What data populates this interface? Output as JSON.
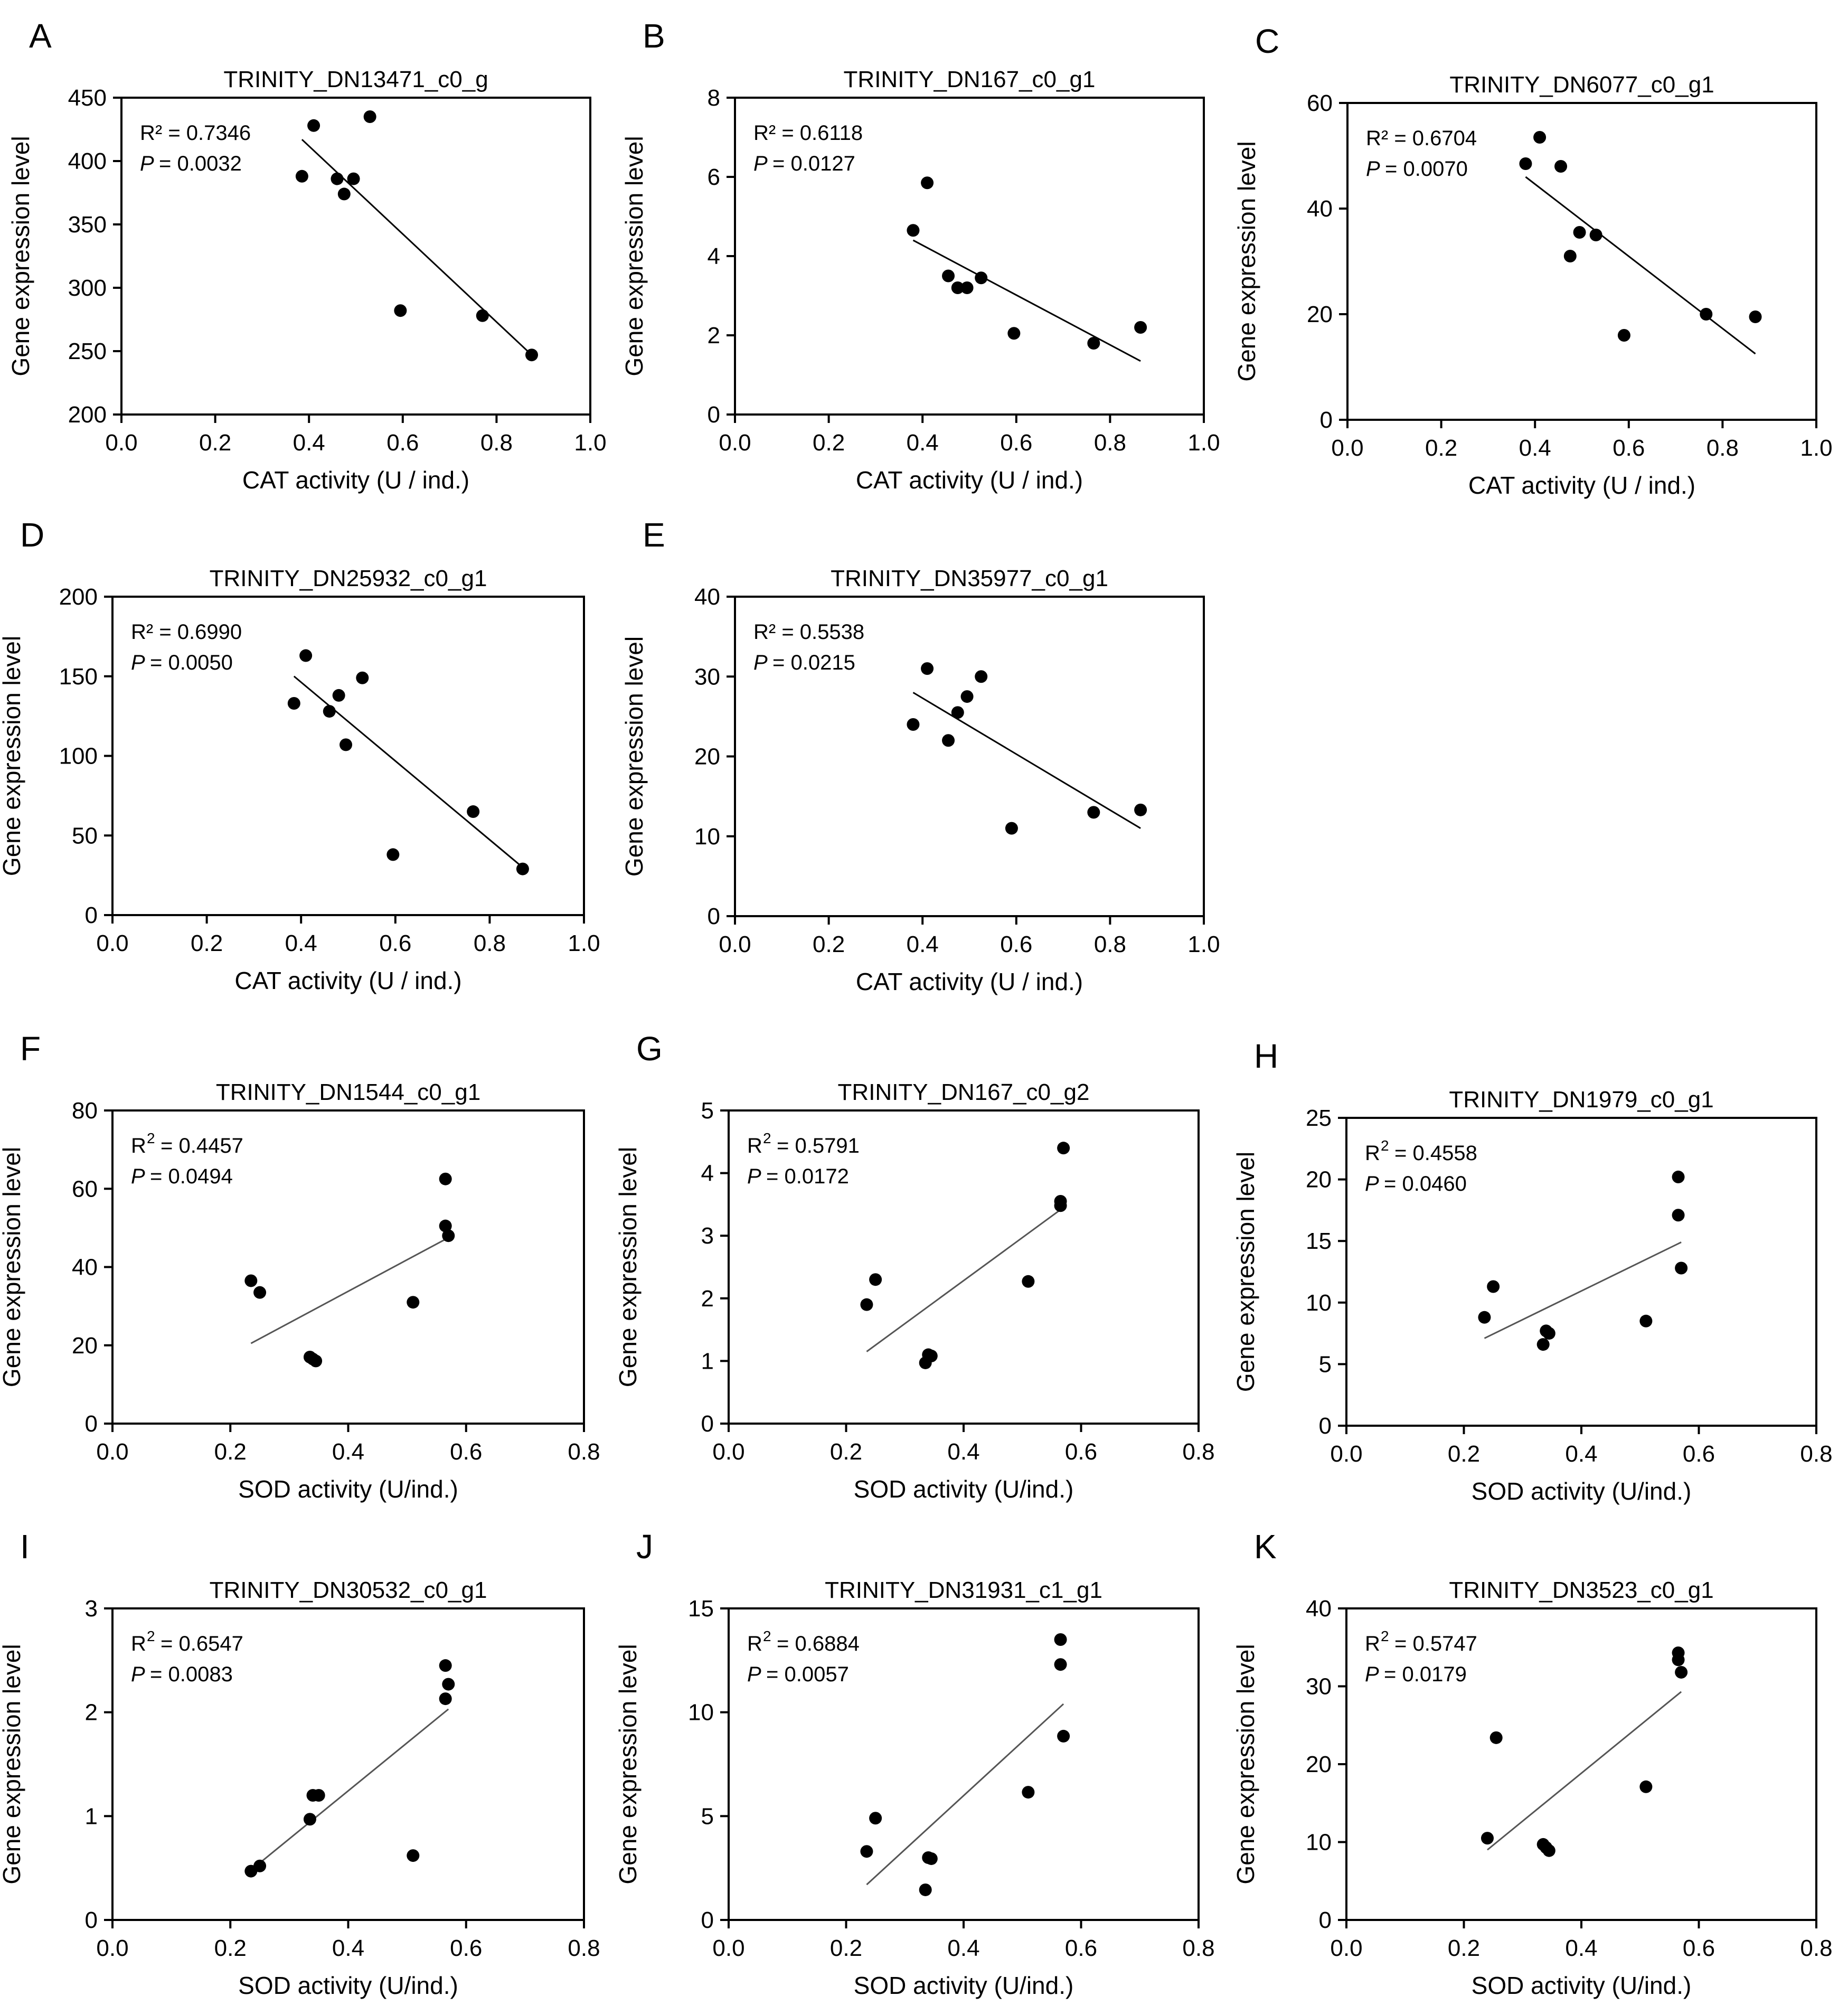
{
  "chart_data": [
    {
      "id": "A",
      "type": "scatter",
      "panel_label": "A",
      "title": "TRINITY_DN13471_c0_g",
      "xlabel": "CAT activity (U / ind.)",
      "ylabel": "Gene expression level",
      "xlim": [
        0,
        1.0
      ],
      "ylim": [
        200,
        450
      ],
      "xticks": [
        "0.0",
        "0.2",
        "0.4",
        "0.6",
        "0.8",
        "1.0"
      ],
      "yticks": [
        "200",
        "250",
        "300",
        "350",
        "400",
        "450"
      ],
      "r2_label": "R² = 0.7346",
      "p_label": "= 0.0032",
      "x": [
        0.385,
        0.41,
        0.46,
        0.475,
        0.495,
        0.53,
        0.595,
        0.77,
        0.875
      ],
      "y": [
        388,
        428,
        386,
        374,
        386,
        435,
        282,
        278,
        247
      ],
      "fit": [
        [
          0.385,
          417
        ],
        [
          0.875,
          247
        ]
      ]
    },
    {
      "id": "B",
      "type": "scatter",
      "panel_label": "B",
      "title": "TRINITY_DN167_c0_g1",
      "xlabel": "CAT activity (U / ind.)",
      "ylabel": "Gene expression level",
      "xlim": [
        0,
        1.0
      ],
      "ylim": [
        0,
        8
      ],
      "xticks": [
        "0.0",
        "0.2",
        "0.4",
        "0.6",
        "0.8",
        "1.0"
      ],
      "yticks": [
        "0",
        "2",
        "4",
        "6",
        "8"
      ],
      "r2_label": "R² = 0.6118",
      "p_label": "= 0.0127",
      "x": [
        0.38,
        0.41,
        0.455,
        0.475,
        0.495,
        0.525,
        0.595,
        0.765,
        0.865
      ],
      "y": [
        4.65,
        5.85,
        3.5,
        3.2,
        3.2,
        3.45,
        2.05,
        1.8,
        2.2
      ],
      "fit": [
        [
          0.38,
          4.4
        ],
        [
          0.865,
          1.35
        ]
      ]
    },
    {
      "id": "C",
      "type": "scatter",
      "panel_label": "C",
      "title": "TRINITY_DN6077_c0_g1",
      "xlabel": "CAT activity (U / ind.)",
      "ylabel": "Gene expression level",
      "xlim": [
        0,
        1.0
      ],
      "ylim": [
        0,
        60
      ],
      "xticks": [
        "0.0",
        "0.2",
        "0.4",
        "0.6",
        "0.8",
        "1.0"
      ],
      "yticks": [
        "0",
        "20",
        "40",
        "60"
      ],
      "r2_label": "R² = 0.6704",
      "p_label": "= 0.0070",
      "x": [
        0.38,
        0.41,
        0.455,
        0.475,
        0.495,
        0.53,
        0.59,
        0.765,
        0.87
      ],
      "y": [
        48.5,
        53.5,
        48,
        31,
        35.5,
        35,
        16,
        20,
        19.5
      ],
      "fit": [
        [
          0.38,
          46
        ],
        [
          0.87,
          12.5
        ]
      ]
    },
    {
      "id": "D",
      "type": "scatter",
      "panel_label": "D",
      "title": "TRINITY_DN25932_c0_g1",
      "xlabel": "CAT activity (U / ind.)",
      "ylabel": "Gene expression level",
      "xlim": [
        0,
        1.0
      ],
      "ylim": [
        0,
        200
      ],
      "xticks": [
        "0.0",
        "0.2",
        "0.4",
        "0.6",
        "0.8",
        "1.0"
      ],
      "yticks": [
        "0",
        "50",
        "100",
        "150",
        "200"
      ],
      "r2_label": "R² = 0.6990",
      "p_label": "= 0.0050",
      "x": [
        0.385,
        0.41,
        0.46,
        0.48,
        0.495,
        0.53,
        0.595,
        0.765,
        0.87
      ],
      "y": [
        133,
        163,
        128,
        138,
        107,
        149,
        38,
        65,
        29
      ],
      "fit": [
        [
          0.385,
          150
        ],
        [
          0.87,
          30
        ]
      ]
    },
    {
      "id": "E",
      "type": "scatter",
      "panel_label": "E",
      "title": "TRINITY_DN35977_c0_g1",
      "xlabel": "CAT activity (U / ind.)",
      "ylabel": "Gene expression level",
      "xlim": [
        0,
        1.0
      ],
      "ylim": [
        0,
        40
      ],
      "xticks": [
        "0.0",
        "0.2",
        "0.4",
        "0.6",
        "0.8",
        "1.0"
      ],
      "yticks": [
        "0",
        "10",
        "20",
        "30",
        "40"
      ],
      "r2_label": "R² = 0.5538",
      "p_label": "= 0.0215",
      "x": [
        0.38,
        0.41,
        0.455,
        0.475,
        0.495,
        0.525,
        0.59,
        0.765,
        0.865
      ],
      "y": [
        24,
        31,
        22,
        25.5,
        27.5,
        30,
        11,
        13,
        13.3
      ],
      "fit": [
        [
          0.38,
          28
        ],
        [
          0.865,
          11
        ]
      ]
    },
    {
      "id": "F",
      "type": "scatter",
      "panel_label": "F",
      "title": "TRINITY_DN1544_c0_g1",
      "xlabel": "SOD activity (U/ind.)",
      "ylabel": "Gene expression level",
      "xlim": [
        0,
        0.8
      ],
      "ylim": [
        0,
        80
      ],
      "xticks": [
        "0.0",
        "0.2",
        "0.4",
        "0.6",
        "0.8"
      ],
      "yticks": [
        "0",
        "20",
        "40",
        "60",
        "80"
      ],
      "r2_label": "= 0.4457",
      "p_label": "= 0.0494",
      "x": [
        0.235,
        0.25,
        0.335,
        0.34,
        0.345,
        0.51,
        0.565,
        0.565,
        0.57
      ],
      "y": [
        36.5,
        33.5,
        17,
        16.5,
        16,
        31,
        62.5,
        50.5,
        48
      ],
      "fit": [
        [
          0.235,
          20.5
        ],
        [
          0.57,
          47.5
        ]
      ]
    },
    {
      "id": "G",
      "type": "scatter",
      "panel_label": "G",
      "title": "TRINITY_DN167_c0_g2",
      "xlabel": "SOD activity (U/ind.)",
      "ylabel": "Gene expression level",
      "xlim": [
        0,
        0.8
      ],
      "ylim": [
        0,
        5
      ],
      "xticks": [
        "0.0",
        "0.2",
        "0.4",
        "0.6",
        "0.8"
      ],
      "yticks": [
        "0",
        "1",
        "2",
        "3",
        "4",
        "5"
      ],
      "r2_label": "= 0.5791",
      "p_label": "= 0.0172",
      "x": [
        0.235,
        0.25,
        0.335,
        0.34,
        0.345,
        0.51,
        0.565,
        0.565,
        0.57
      ],
      "y": [
        1.9,
        2.3,
        0.97,
        1.1,
        1.08,
        2.27,
        3.55,
        3.48,
        4.4
      ],
      "fit": [
        [
          0.235,
          1.15
        ],
        [
          0.57,
          3.45
        ]
      ]
    },
    {
      "id": "H",
      "type": "scatter",
      "panel_label": "H",
      "title": "TRINITY_DN1979_c0_g1",
      "xlabel": "SOD activity (U/ind.)",
      "ylabel": "Gene expression level",
      "xlim": [
        0,
        0.8
      ],
      "ylim": [
        0,
        25
      ],
      "xticks": [
        "0.0",
        "0.2",
        "0.4",
        "0.6",
        "0.8"
      ],
      "yticks": [
        "0",
        "5",
        "10",
        "15",
        "20",
        "25"
      ],
      "r2_label": "= 0.4558",
      "p_label": "= 0.0460",
      "x": [
        0.235,
        0.25,
        0.335,
        0.34,
        0.345,
        0.51,
        0.565,
        0.565,
        0.57
      ],
      "y": [
        8.8,
        11.3,
        6.6,
        7.7,
        7.5,
        8.5,
        20.2,
        17.1,
        12.8
      ],
      "fit": [
        [
          0.235,
          7.1
        ],
        [
          0.57,
          14.9
        ]
      ]
    },
    {
      "id": "I",
      "type": "scatter",
      "panel_label": "I",
      "title": "TRINITY_DN30532_c0_g1",
      "xlabel": "SOD activity (U/ind.)",
      "ylabel": "Gene expression level",
      "xlim": [
        0,
        0.8
      ],
      "ylim": [
        0,
        3
      ],
      "xticks": [
        "0.0",
        "0.2",
        "0.4",
        "0.6",
        "0.8"
      ],
      "yticks": [
        "0",
        "1",
        "2",
        "3"
      ],
      "r2_label": "= 0.6547",
      "p_label": "= 0.0083",
      "x": [
        0.235,
        0.25,
        0.335,
        0.34,
        0.35,
        0.51,
        0.565,
        0.57,
        0.565
      ],
      "y": [
        0.47,
        0.52,
        0.97,
        1.2,
        1.2,
        0.62,
        2.45,
        2.27,
        2.13
      ],
      "fit": [
        [
          0.235,
          0.48
        ],
        [
          0.57,
          2.03
        ]
      ]
    },
    {
      "id": "J",
      "type": "scatter",
      "panel_label": "J",
      "title": "TRINITY_DN31931_c1_g1",
      "xlabel": "SOD activity (U/ind.)",
      "ylabel": "Gene expression level",
      "xlim": [
        0,
        0.8
      ],
      "ylim": [
        0,
        15
      ],
      "xticks": [
        "0.0",
        "0.2",
        "0.4",
        "0.6",
        "0.8"
      ],
      "yticks": [
        "0",
        "5",
        "10",
        "15"
      ],
      "r2_label": "= 0.6884",
      "p_label": "= 0.0057",
      "x": [
        0.235,
        0.25,
        0.335,
        0.34,
        0.345,
        0.51,
        0.565,
        0.565,
        0.57
      ],
      "y": [
        3.3,
        4.9,
        1.45,
        3.0,
        2.95,
        6.15,
        13.5,
        12.3,
        8.85
      ],
      "fit": [
        [
          0.235,
          1.7
        ],
        [
          0.57,
          10.4
        ]
      ]
    },
    {
      "id": "K",
      "type": "scatter",
      "panel_label": "K",
      "title": "TRINITY_DN3523_c0_g1",
      "xlabel": "SOD activity (U/ind.)",
      "ylabel": "Gene expression level",
      "xlim": [
        0,
        0.8
      ],
      "ylim": [
        0,
        40
      ],
      "xticks": [
        "0.0",
        "0.2",
        "0.4",
        "0.6",
        "0.8"
      ],
      "yticks": [
        "0",
        "10",
        "20",
        "30",
        "40"
      ],
      "r2_label": "= 0.5747",
      "p_label": "= 0.0179",
      "x": [
        0.24,
        0.255,
        0.335,
        0.34,
        0.345,
        0.51,
        0.565,
        0.565,
        0.57
      ],
      "y": [
        10.5,
        23.4,
        9.7,
        9.3,
        8.9,
        17.1,
        34.3,
        33.4,
        31.8
      ],
      "fit": [
        [
          0.24,
          9
        ],
        [
          0.57,
          29.3
        ]
      ]
    }
  ]
}
